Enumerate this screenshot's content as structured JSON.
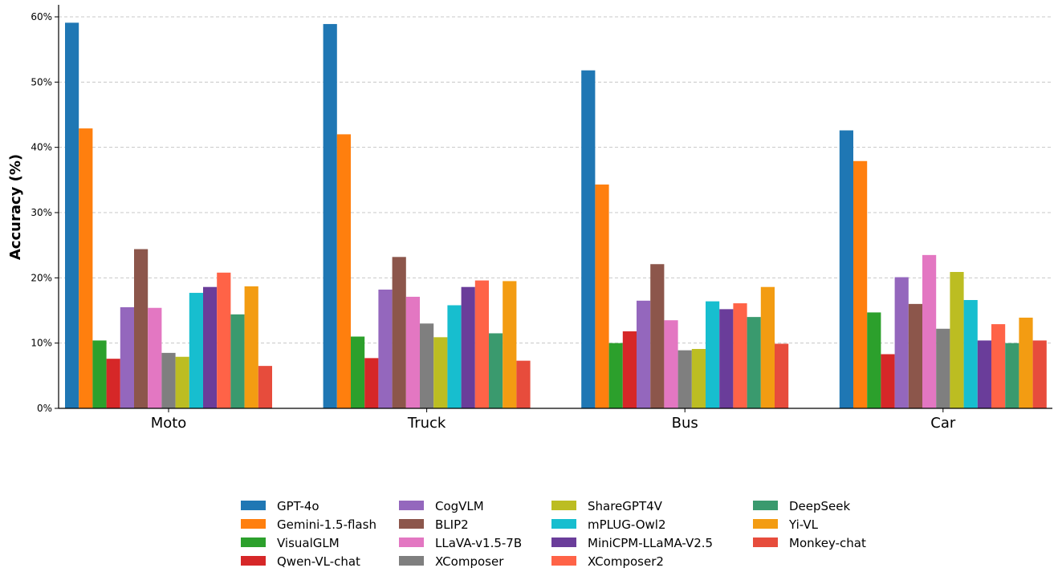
{
  "chart_data": {
    "type": "bar",
    "title": "",
    "xlabel": "",
    "ylabel": "Accuracy (%)",
    "ylim": [
      0,
      60
    ],
    "yticks": [
      "0%",
      "10%",
      "20%",
      "30%",
      "40%",
      "50%",
      "60%"
    ],
    "grid": "horizontal dashed",
    "legend_position": "bottom-center",
    "categories": [
      "Moto",
      "Truck",
      "Bus",
      "Car"
    ],
    "series": [
      {
        "name": "GPT-4o",
        "color": "#1f77b4",
        "values": [
          59.1,
          58.9,
          51.8,
          42.6
        ]
      },
      {
        "name": "Gemini-1.5-flash",
        "color": "#ff7f0e",
        "values": [
          42.9,
          42.0,
          34.3,
          37.9
        ]
      },
      {
        "name": "VisualGLM",
        "color": "#2ca02c",
        "values": [
          10.4,
          11.0,
          10.0,
          14.7
        ]
      },
      {
        "name": "Qwen-VL-chat",
        "color": "#d62728",
        "values": [
          7.6,
          7.7,
          11.8,
          8.3
        ]
      },
      {
        "name": "CogVLM",
        "color": "#9467bd",
        "values": [
          15.5,
          18.2,
          16.5,
          20.1
        ]
      },
      {
        "name": "BLIP2",
        "color": "#8c564b",
        "values": [
          24.4,
          23.2,
          22.1,
          16.0
        ]
      },
      {
        "name": "LLaVA-v1.5-7B",
        "color": "#e377c2",
        "values": [
          15.4,
          17.1,
          13.5,
          23.5
        ]
      },
      {
        "name": "XComposer",
        "color": "#7f7f7f",
        "values": [
          8.5,
          13.0,
          8.9,
          12.2
        ]
      },
      {
        "name": "ShareGPT4V",
        "color": "#bcbd22",
        "values": [
          7.9,
          10.9,
          9.1,
          20.9
        ]
      },
      {
        "name": "mPLUG-Owl2",
        "color": "#17becf",
        "values": [
          17.7,
          15.8,
          16.4,
          16.6
        ]
      },
      {
        "name": "MiniCPM-LLaMA-V2.5",
        "color": "#6a3d9a",
        "values": [
          18.6,
          18.6,
          15.2,
          10.4
        ]
      },
      {
        "name": "XComposer2",
        "color": "#ff6347",
        "values": [
          20.8,
          19.6,
          16.1,
          12.9
        ]
      },
      {
        "name": "DeepSeek",
        "color": "#3a9a6e",
        "values": [
          14.4,
          11.5,
          14.0,
          10.0
        ]
      },
      {
        "name": "Yi-VL",
        "color": "#f39c12",
        "values": [
          18.7,
          19.5,
          18.6,
          13.9
        ]
      },
      {
        "name": "Monkey-chat",
        "color": "#e74c3c",
        "values": [
          6.5,
          7.3,
          9.9,
          10.4
        ]
      }
    ]
  }
}
